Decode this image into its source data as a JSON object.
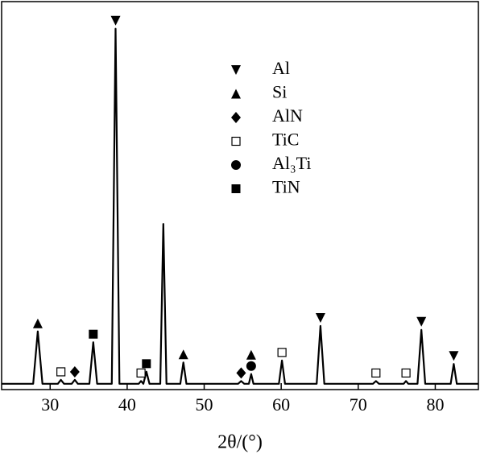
{
  "chart_data": {
    "type": "line",
    "xlabel": "2θ/(°)",
    "x": [
      23.7,
      27.8,
      28.4,
      29.0,
      31.0,
      31.4,
      31.8,
      32.8,
      33.2,
      33.6,
      35.1,
      35.6,
      36.1,
      38.0,
      38.5,
      39.0,
      41.5,
      41.8,
      42.1,
      42.5,
      42.9,
      44.3,
      44.7,
      45.1,
      46.9,
      47.3,
      47.7,
      54.4,
      54.8,
      55.2,
      55.8,
      56.1,
      56.4,
      59.7,
      60.1,
      60.5,
      64.6,
      65.1,
      65.6,
      71.9,
      72.3,
      72.7,
      75.9,
      76.2,
      76.5,
      77.7,
      78.2,
      78.7,
      82.0,
      82.4,
      82.8,
      85.6
    ],
    "values": [
      1.5,
      1.5,
      15,
      1.5,
      1.5,
      2.5,
      1.5,
      1.5,
      2.5,
      1.5,
      1.5,
      12.2,
      1.5,
      1.5,
      93,
      1.5,
      1.5,
      2.2,
      1.5,
      4.6,
      1.5,
      1.5,
      42.7,
      1.5,
      1.5,
      7,
      1.5,
      1.5,
      2.2,
      1.5,
      1.5,
      4,
      1.5,
      1.5,
      7.5,
      1.5,
      1.5,
      16.4,
      1.5,
      1.5,
      2.2,
      1.5,
      1.5,
      2.2,
      1.5,
      1.5,
      15.4,
      1.5,
      1.5,
      6.6,
      1.5,
      1.5
    ],
    "color": "#000000",
    "xlim": [
      23.7,
      85.6
    ],
    "ylim": [
      0,
      100
    ],
    "xticks": [
      30,
      40,
      50,
      60,
      70,
      80
    ],
    "phases": [
      {
        "name": "Al",
        "symbol": "triangle-down",
        "peaks": [
          38.5,
          65.1,
          78.2,
          82.4
        ]
      },
      {
        "name": "Si",
        "symbol": "triangle-up",
        "peaks": [
          28.4,
          47.3,
          56.1
        ]
      },
      {
        "name": "AlN",
        "symbol": "diamond",
        "peaks": [
          33.2,
          54.8
        ]
      },
      {
        "name": "TiC",
        "symbol": "open-square",
        "peaks": [
          31.4,
          41.8,
          60.1,
          72.3,
          76.2
        ]
      },
      {
        "name": "Al₃Ti",
        "symbol": "circle",
        "peaks": [
          56.1
        ]
      },
      {
        "name": "TiN",
        "symbol": "square",
        "peaks": [
          35.6,
          42.5
        ]
      }
    ]
  }
}
